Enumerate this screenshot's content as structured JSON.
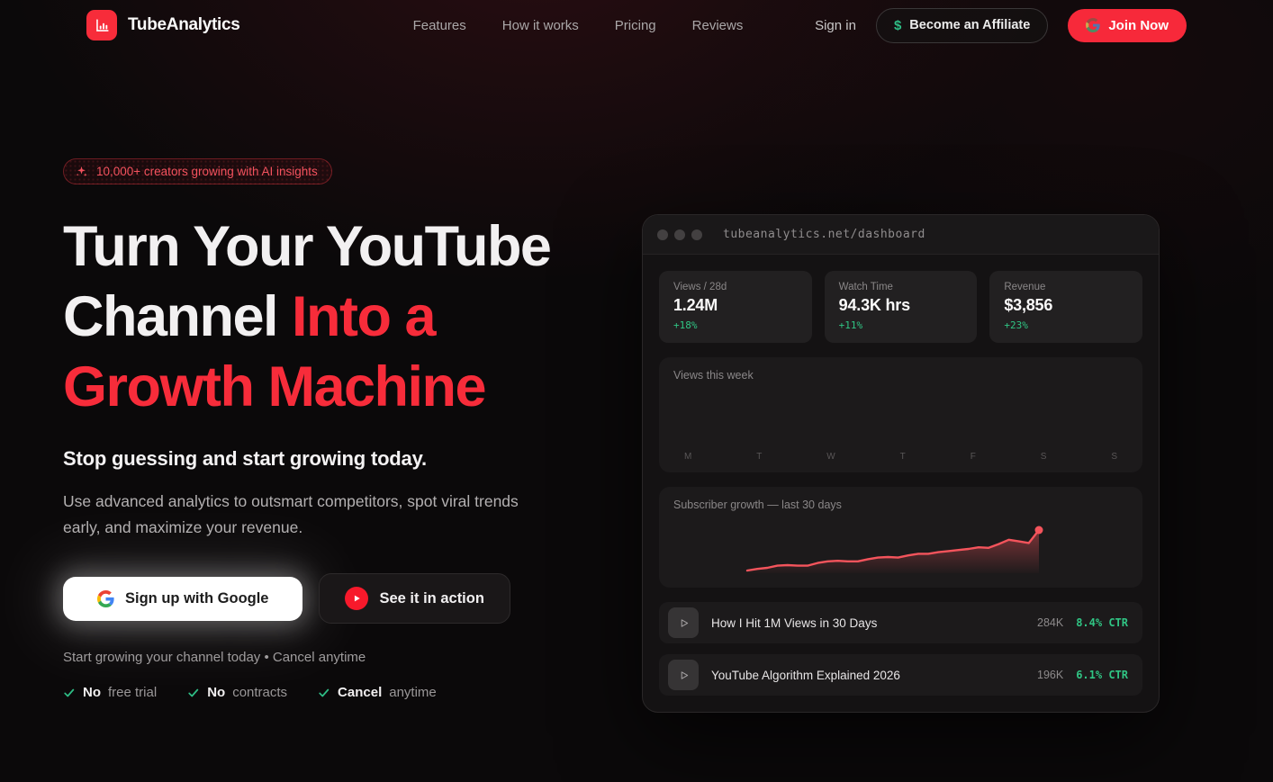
{
  "colors": {
    "accent_red": "#f72c3a",
    "accent_green": "#30c584",
    "line_red": "#f4545c"
  },
  "nav": {
    "brand": "TubeAnalytics",
    "links": [
      "Features",
      "How it works",
      "Pricing",
      "Reviews"
    ],
    "sign_in": "Sign in",
    "affiliate_icon": "$",
    "affiliate_label": "Become an Affiliate",
    "join_label": "Join Now"
  },
  "hero": {
    "badge": "10,000+ creators growing with AI insights",
    "title_white": "Turn Your YouTube Channel",
    "title_red": "Into a Growth Machine",
    "subtitle": "Stop guessing and start growing today.",
    "body": "Use advanced analytics to outsmart competitors, spot viral trends early, and maximize your revenue.",
    "google_button": "Sign up with Google",
    "demo_button": "See it in action",
    "footnote": "Start growing your channel today • Cancel anytime",
    "checks": [
      {
        "bold": "No",
        "rest": "free trial"
      },
      {
        "bold": "No",
        "rest": "contracts"
      },
      {
        "bold": "Cancel",
        "rest": "anytime"
      }
    ]
  },
  "dashboard": {
    "url": "tubeanalytics.net/dashboard",
    "stats": [
      {
        "label": "Views / 28d",
        "value": "1.24M",
        "delta": "+18%"
      },
      {
        "label": "Watch Time",
        "value": "94.3K hrs",
        "delta": "+11%"
      },
      {
        "label": "Revenue",
        "value": "$3,856",
        "delta": "+23%"
      }
    ],
    "week_chart": {
      "title": "Views this week",
      "days": [
        "M",
        "T",
        "W",
        "T",
        "F",
        "S",
        "S"
      ]
    },
    "line_chart": {
      "title": "Subscriber growth — last 30 days",
      "points": [
        5,
        8,
        10,
        14,
        15,
        14,
        14,
        19,
        22,
        23,
        22,
        22,
        26,
        29,
        30,
        29,
        33,
        36,
        36,
        39,
        41,
        43,
        45,
        48,
        47,
        54,
        62,
        59,
        56,
        80
      ]
    },
    "videos": [
      {
        "title": "How I Hit 1M Views in 30 Days",
        "views": "284K",
        "ctr": "8.4% CTR"
      },
      {
        "title": "YouTube Algorithm Explained 2026",
        "views": "196K",
        "ctr": "6.1% CTR"
      }
    ]
  },
  "chart_data": [
    {
      "type": "bar",
      "title": "Views this week",
      "categories": [
        "M",
        "T",
        "W",
        "T",
        "F",
        "S",
        "S"
      ],
      "values": [],
      "note": "bars not visible in screenshot, axis labels only"
    },
    {
      "type": "area",
      "title": "Subscriber growth — last 30 days",
      "x": "days 1-30",
      "values_normalized_0_100": [
        5,
        8,
        10,
        14,
        15,
        14,
        14,
        19,
        22,
        23,
        22,
        22,
        26,
        29,
        30,
        29,
        33,
        36,
        36,
        39,
        41,
        43,
        45,
        48,
        47,
        54,
        62,
        59,
        56,
        80
      ],
      "legend": "off",
      "grid": "off"
    }
  ]
}
